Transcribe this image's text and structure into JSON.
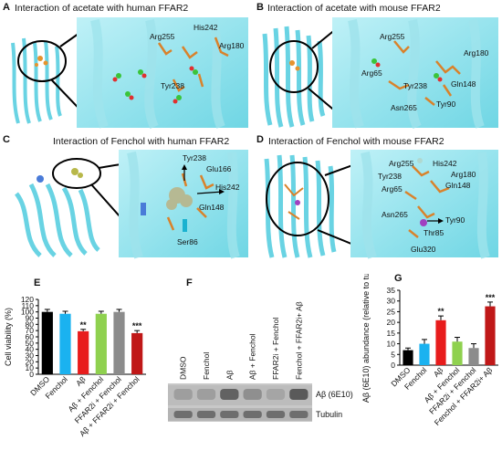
{
  "panels": {
    "A": {
      "label": "A",
      "title": "Interaction of acetate with human FFAR2",
      "residues": [
        "Arg255",
        "His242",
        "Arg180",
        "Tyr238"
      ]
    },
    "B": {
      "label": "B",
      "title": "Interaction of acetate with mouse FFAR2",
      "residues": [
        "Arg255",
        "Arg65",
        "Arg180",
        "Tyr238",
        "Gln148",
        "Tyr90",
        "Asn265"
      ]
    },
    "C": {
      "label": "C",
      "title": "Interaction of Fenchol with human FFAR2",
      "residues": [
        "Tyr238",
        "Glu166",
        "His242",
        "Gln148",
        "Ser86"
      ]
    },
    "D": {
      "label": "D",
      "title": "Interaction of Fenchol with mouse FFAR2",
      "residues": [
        "Arg255",
        "His242",
        "Tyr238",
        "Arg180",
        "Arg65",
        "Gln148",
        "Asn265",
        "Tyr90",
        "Thr85",
        "Glu320"
      ]
    }
  },
  "panel_E_label": "E",
  "panel_F_label": "F",
  "panel_G_label": "G",
  "blot": {
    "lanes": [
      "DMSO",
      "Fenchol",
      "Aβ",
      "Aβ + Fenchol",
      "FFAR2i + Fenchol",
      "Fenchol + FFAR2i+ Aβ"
    ],
    "band_labels": [
      "Aβ (6E10)",
      "Tubulin"
    ]
  },
  "chart_data": [
    {
      "type": "bar",
      "categories": [
        "DMSO",
        "Fenchol",
        "Aβ",
        "Aβ + Fenchol",
        "FFAR2i + Fenchol",
        "Aβ + FFAR2i + Fenchol"
      ],
      "values": [
        100,
        97,
        69,
        97,
        100,
        66
      ],
      "errors": [
        4,
        4,
        3,
        4,
        4,
        4
      ],
      "colors": [
        "#000000",
        "#1ab2f0",
        "#e81c1c",
        "#8fd14f",
        "#8c8c8c",
        "#c01818"
      ],
      "significance": [
        "",
        "",
        "**",
        "",
        "",
        "***"
      ],
      "ylabel": "Cell viability (%)",
      "ylim": [
        0,
        120
      ],
      "yticks": [
        "0",
        "10",
        "20",
        "30",
        "40",
        "50",
        "60",
        "70",
        "80",
        "90",
        "100",
        "110",
        "120"
      ]
    },
    {
      "type": "bar",
      "categories": [
        "DMSO",
        "Fenchol",
        "Aβ",
        "Aβ + Fenchol",
        "FFAR2i + Fenchol",
        "Fenchol + FFAR2i+ Aβ"
      ],
      "values": [
        7,
        10,
        21,
        11,
        8,
        27.5
      ],
      "errors": [
        1,
        2,
        2,
        2,
        2,
        2
      ],
      "colors": [
        "#000000",
        "#1ab2f0",
        "#e81c1c",
        "#8fd14f",
        "#8c8c8c",
        "#c01818"
      ],
      "significance": [
        "",
        "",
        "**",
        "",
        "",
        "***"
      ],
      "ylabel": "Aβ (6E10) abundance (relative to tubulin)",
      "ylim": [
        0,
        35
      ],
      "yticks": [
        "0",
        "5",
        "10",
        "15",
        "20",
        "25",
        "30",
        "35"
      ]
    }
  ]
}
